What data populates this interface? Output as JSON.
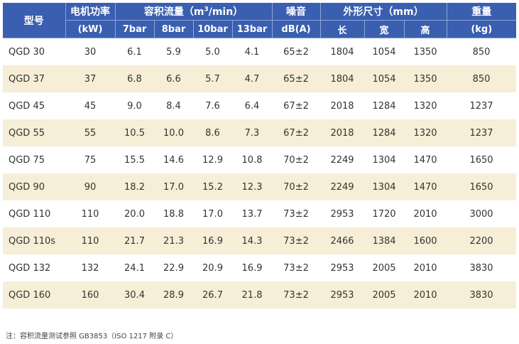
{
  "header": {
    "model": "型号",
    "power": "电机功率",
    "power_unit": "(kW)",
    "flow_prefix": "容积流量（m",
    "flow_sup": "3",
    "flow_suffix": "/min）",
    "pressures": [
      "7bar",
      "8bar",
      "10bar",
      "13bar"
    ],
    "noise": "噪音",
    "noise_unit": "dB(A)",
    "dims": "外形尺寸（mm）",
    "dims_cols": [
      "长",
      "宽",
      "高"
    ],
    "weight": "重量",
    "weight_unit": "(kg)"
  },
  "rows": [
    {
      "model": "QGD 30",
      "power": "30",
      "f7": "6.1",
      "f8": "5.9",
      "f10": "5.0",
      "f13": "4.1",
      "noise": "65±2",
      "length": "1804",
      "width": "1054",
      "height": "1350",
      "weight": "850"
    },
    {
      "model": "QGD 37",
      "power": "37",
      "f7": "6.8",
      "f8": "6.6",
      "f10": "5.7",
      "f13": "4.7",
      "noise": "65±2",
      "length": "1804",
      "width": "1054",
      "height": "1350",
      "weight": "850"
    },
    {
      "model": "QGD 45",
      "power": "45",
      "f7": "9.0",
      "f8": "8.4",
      "f10": "7.6",
      "f13": "6.4",
      "noise": "67±2",
      "length": "2018",
      "width": "1284",
      "height": "1320",
      "weight": "1237"
    },
    {
      "model": "QGD 55",
      "power": "55",
      "f7": "10.5",
      "f8": "10.0",
      "f10": "8.6",
      "f13": "7.3",
      "noise": "67±2",
      "length": "2018",
      "width": "1284",
      "height": "1320",
      "weight": "1237"
    },
    {
      "model": "QGD 75",
      "power": "75",
      "f7": "15.5",
      "f8": "14.6",
      "f10": "12.9",
      "f13": "10.8",
      "noise": "70±2",
      "length": "2249",
      "width": "1304",
      "height": "1470",
      "weight": "1650"
    },
    {
      "model": "QGD 90",
      "power": "90",
      "f7": "18.2",
      "f8": "17.0",
      "f10": "15.2",
      "f13": "12.3",
      "noise": "70±2",
      "length": "2249",
      "width": "1304",
      "height": "1470",
      "weight": "1650"
    },
    {
      "model": "QGD 110",
      "power": "110",
      "f7": "20.0",
      "f8": "18.8",
      "f10": "17.0",
      "f13": "13.7",
      "noise": "73±2",
      "length": "2953",
      "width": "1720",
      "height": "2010",
      "weight": "3000"
    },
    {
      "model": "QGD 110s",
      "power": "110",
      "f7": "21.7",
      "f8": "21.3",
      "f10": "16.9",
      "f13": "14.3",
      "noise": "73±2",
      "length": "2466",
      "width": "1384",
      "height": "1600",
      "weight": "2200"
    },
    {
      "model": "QGD 132",
      "power": "132",
      "f7": "24.1",
      "f8": "22.9",
      "f10": "20.9",
      "f13": "16.9",
      "noise": "73±2",
      "length": "2953",
      "width": "2005",
      "height": "2010",
      "weight": "3830"
    },
    {
      "model": "QGD 160",
      "power": "160",
      "f7": "30.4",
      "f8": "28.9",
      "f10": "26.7",
      "f13": "21.8",
      "noise": "73±2",
      "length": "2953",
      "width": "2005",
      "height": "2010",
      "weight": "3830"
    }
  ],
  "note": "注：容积流量测试参照 GB3853（ISO 1217 附录 C）",
  "colors": {
    "header_bg": "#3a5fb0",
    "stripe": "#f6eed6"
  }
}
